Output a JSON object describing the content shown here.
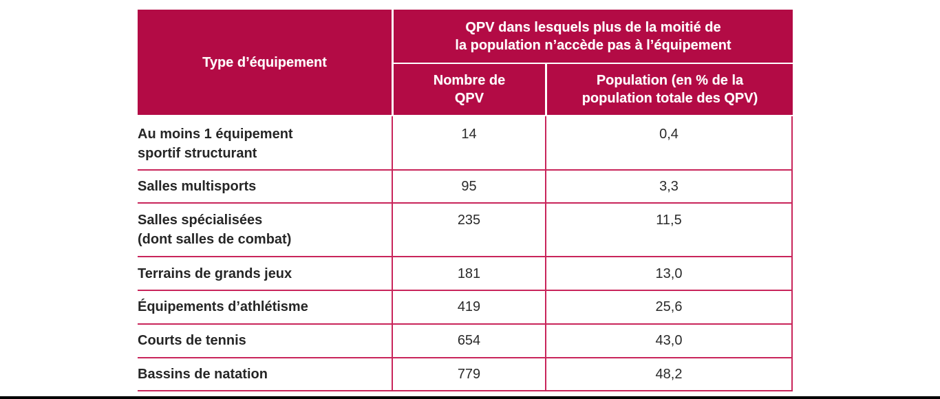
{
  "table": {
    "header": {
      "type_col": "Type d’équipement",
      "group": "QPV dans lesquels plus de la moitié de la population n’accède pas à l’équipement",
      "group_line1": "QPV dans lesquels plus de la moitié de",
      "group_line2": "la population n’accède pas à l’équipement",
      "count_col_line1": "Nombre de",
      "count_col_line2": "QPV",
      "pop_col_line1": "Population (en % de la",
      "pop_col_line2": "population totale des QPV)"
    },
    "rows": [
      {
        "label_line1": "Au moins 1 équipement",
        "label_line2": "sportif structurant",
        "count": "14",
        "population": "0,4"
      },
      {
        "label_line1": "Salles multisports",
        "label_line2": "",
        "count": "95",
        "population": "3,3"
      },
      {
        "label_line1": "Salles spécialisées",
        "label_line2": "(dont salles de combat)",
        "count": "235",
        "population": "11,5"
      },
      {
        "label_line1": "Terrains de grands jeux",
        "label_line2": "",
        "count": "181",
        "population": "13,0"
      },
      {
        "label_line1": "Équipements d’athlétisme",
        "label_line2": "",
        "count": "419",
        "population": "25,6"
      },
      {
        "label_line1": "Courts de tennis",
        "label_line2": "",
        "count": "654",
        "population": "43,0"
      },
      {
        "label_line1": "Bassins de natation",
        "label_line2": "",
        "count": "779",
        "population": "48,2"
      }
    ]
  },
  "colors": {
    "accent": "#B30B45",
    "rule": "#C8245A"
  }
}
